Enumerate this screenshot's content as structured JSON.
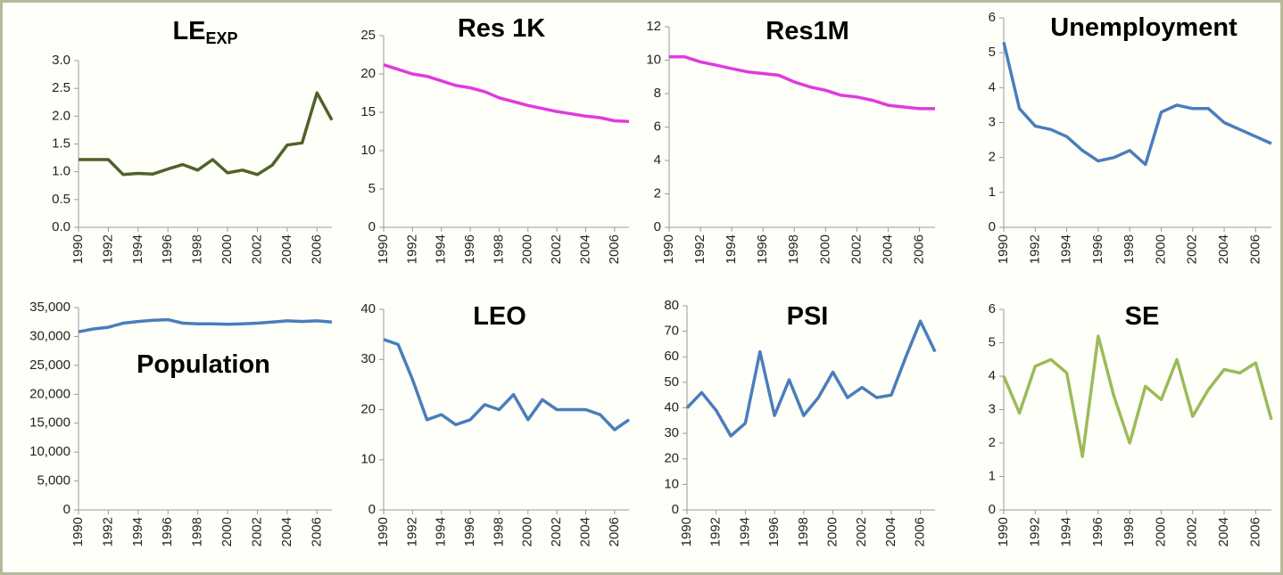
{
  "chart_data": [
    {
      "type": "line",
      "title": "LE",
      "subscript": "EXP",
      "x": [
        1990,
        1991,
        1992,
        1993,
        1994,
        1995,
        1996,
        1997,
        1998,
        1999,
        2000,
        2001,
        2002,
        2003,
        2004,
        2005,
        2006,
        2007
      ],
      "xlim": [
        1990,
        2007
      ],
      "xticks": [
        1990,
        1992,
        1994,
        1996,
        1998,
        2000,
        2002,
        2004,
        2006
      ],
      "values": [
        1.22,
        1.22,
        1.22,
        0.95,
        0.97,
        0.96,
        1.05,
        1.13,
        1.03,
        1.22,
        0.98,
        1.03,
        0.95,
        1.12,
        1.48,
        1.52,
        2.42,
        1.93
      ],
      "color": "#4f6228",
      "ylim": [
        0,
        3
      ],
      "yticks": [
        {
          "value": 0,
          "label": "0.0"
        },
        {
          "value": 0.5,
          "label": "0.5"
        },
        {
          "value": 1,
          "label": "1.0"
        },
        {
          "value": 1.5,
          "label": "1.5"
        },
        {
          "value": 2,
          "label": "2.0"
        },
        {
          "value": 2.5,
          "label": "2.5"
        },
        {
          "value": 3,
          "label": "3.0"
        }
      ]
    },
    {
      "type": "line",
      "title": "Res 1K",
      "x": [
        1990,
        1991,
        1992,
        1993,
        1994,
        1995,
        1996,
        1997,
        1998,
        1999,
        2000,
        2001,
        2002,
        2003,
        2004,
        2005,
        2006,
        2007
      ],
      "xlim": [
        1990,
        2007
      ],
      "xticks": [
        1990,
        1992,
        1994,
        1996,
        1998,
        2000,
        2002,
        2004,
        2006
      ],
      "values": [
        21.2,
        20.6,
        20.0,
        19.7,
        19.1,
        18.5,
        18.2,
        17.7,
        16.9,
        16.4,
        15.9,
        15.5,
        15.1,
        14.8,
        14.5,
        14.3,
        13.9,
        13.8
      ],
      "color": "#e03ae0",
      "ylim": [
        0,
        25
      ],
      "yticks": [
        0,
        5,
        10,
        15,
        20,
        25
      ]
    },
    {
      "type": "line",
      "title": "Res1M",
      "x": [
        1990,
        1991,
        1992,
        1993,
        1994,
        1995,
        1996,
        1997,
        1998,
        1999,
        2000,
        2001,
        2002,
        2003,
        2004,
        2005,
        2006,
        2007
      ],
      "xlim": [
        1990,
        2007
      ],
      "xticks": [
        1990,
        1992,
        1994,
        1996,
        1998,
        2000,
        2002,
        2004,
        2006
      ],
      "values": [
        10.2,
        10.2,
        9.9,
        9.7,
        9.5,
        9.3,
        9.2,
        9.1,
        8.7,
        8.4,
        8.2,
        7.9,
        7.8,
        7.6,
        7.3,
        7.2,
        7.1,
        7.1
      ],
      "color": "#e03ae0",
      "ylim": [
        0,
        12
      ],
      "yticks": [
        0,
        2,
        4,
        6,
        8,
        10,
        12
      ]
    },
    {
      "type": "line",
      "title": "Unemployment",
      "x": [
        1990,
        1991,
        1992,
        1993,
        1994,
        1995,
        1996,
        1997,
        1998,
        1999,
        2000,
        2001,
        2002,
        2003,
        2004,
        2005,
        2006,
        2007
      ],
      "xlim": [
        1990,
        2007
      ],
      "xticks": [
        1990,
        1992,
        1994,
        1996,
        1998,
        2000,
        2002,
        2004,
        2006
      ],
      "values": [
        5.3,
        3.4,
        2.9,
        2.8,
        2.6,
        2.2,
        1.9,
        2.0,
        2.2,
        1.8,
        3.3,
        3.5,
        3.4,
        3.4,
        3.0,
        2.8,
        2.6,
        2.4
      ],
      "color": "#4a7ebb",
      "ylim": [
        0,
        6
      ],
      "yticks": [
        0,
        1,
        2,
        3,
        4,
        5,
        6
      ]
    },
    {
      "type": "line",
      "title": "Population",
      "x": [
        1990,
        1991,
        1992,
        1993,
        1994,
        1995,
        1996,
        1997,
        1998,
        1999,
        2000,
        2001,
        2002,
        2003,
        2004,
        2005,
        2006,
        2007
      ],
      "xlim": [
        1990,
        2007
      ],
      "xticks": [
        1990,
        1992,
        1994,
        1996,
        1998,
        2000,
        2002,
        2004,
        2006
      ],
      "values": [
        30800,
        31300,
        31600,
        32300,
        32600,
        32800,
        32900,
        32300,
        32200,
        32200,
        32100,
        32200,
        32300,
        32500,
        32700,
        32600,
        32700,
        32500
      ],
      "color": "#4a7ebb",
      "ylim": [
        0,
        35000
      ],
      "yticks": [
        0,
        {
          "value": 5000,
          "label": "5,000"
        },
        {
          "value": 10000,
          "label": "10,000"
        },
        {
          "value": 15000,
          "label": "15,000"
        },
        {
          "value": 20000,
          "label": "20,000"
        },
        {
          "value": 25000,
          "label": "25,000"
        },
        {
          "value": 30000,
          "label": "30,000"
        },
        {
          "value": 35000,
          "label": "35,000"
        }
      ]
    },
    {
      "type": "line",
      "title": "LEO",
      "x": [
        1990,
        1991,
        1992,
        1993,
        1994,
        1995,
        1996,
        1997,
        1998,
        1999,
        2000,
        2001,
        2002,
        2003,
        2004,
        2005,
        2006,
        2007
      ],
      "xlim": [
        1990,
        2007
      ],
      "xticks": [
        1990,
        1992,
        1994,
        1996,
        1998,
        2000,
        2002,
        2004,
        2006
      ],
      "values": [
        34,
        33,
        26,
        18,
        19,
        17,
        18,
        21,
        20,
        23,
        18,
        22,
        20,
        20,
        20,
        19,
        16,
        18
      ],
      "color": "#4a7ebb",
      "ylim": [
        0,
        40
      ],
      "yticks": [
        0,
        10,
        20,
        30,
        40
      ]
    },
    {
      "type": "line",
      "title": "PSI",
      "x": [
        1990,
        1991,
        1992,
        1993,
        1994,
        1995,
        1996,
        1997,
        1998,
        1999,
        2000,
        2001,
        2002,
        2003,
        2004,
        2005,
        2006,
        2007
      ],
      "xlim": [
        1990,
        2007
      ],
      "xticks": [
        1990,
        1992,
        1994,
        1996,
        1998,
        2000,
        2002,
        2004,
        2006
      ],
      "values": [
        40,
        46,
        39,
        29,
        34,
        62,
        37,
        51,
        37,
        44,
        54,
        44,
        48,
        44,
        45,
        60,
        74,
        62
      ],
      "color": "#4a7ebb",
      "ylim": [
        0,
        80
      ],
      "yticks": [
        0,
        10,
        20,
        30,
        40,
        50,
        60,
        70,
        80
      ]
    },
    {
      "type": "line",
      "title": "SE",
      "x": [
        1990,
        1991,
        1992,
        1993,
        1994,
        1995,
        1996,
        1997,
        1998,
        1999,
        2000,
        2001,
        2002,
        2003,
        2004,
        2005,
        2006,
        2007
      ],
      "xlim": [
        1990,
        2007
      ],
      "xticks": [
        1990,
        1992,
        1994,
        1996,
        1998,
        2000,
        2002,
        2004,
        2006
      ],
      "values": [
        4.0,
        2.9,
        4.3,
        4.5,
        4.1,
        1.6,
        5.2,
        3.4,
        2.0,
        3.7,
        3.3,
        4.5,
        2.8,
        3.6,
        4.2,
        4.1,
        4.4,
        2.7
      ],
      "color": "#9bbb59",
      "ylim": [
        0,
        6
      ],
      "yticks": [
        0,
        1,
        2,
        3,
        4,
        5,
        6
      ]
    }
  ]
}
